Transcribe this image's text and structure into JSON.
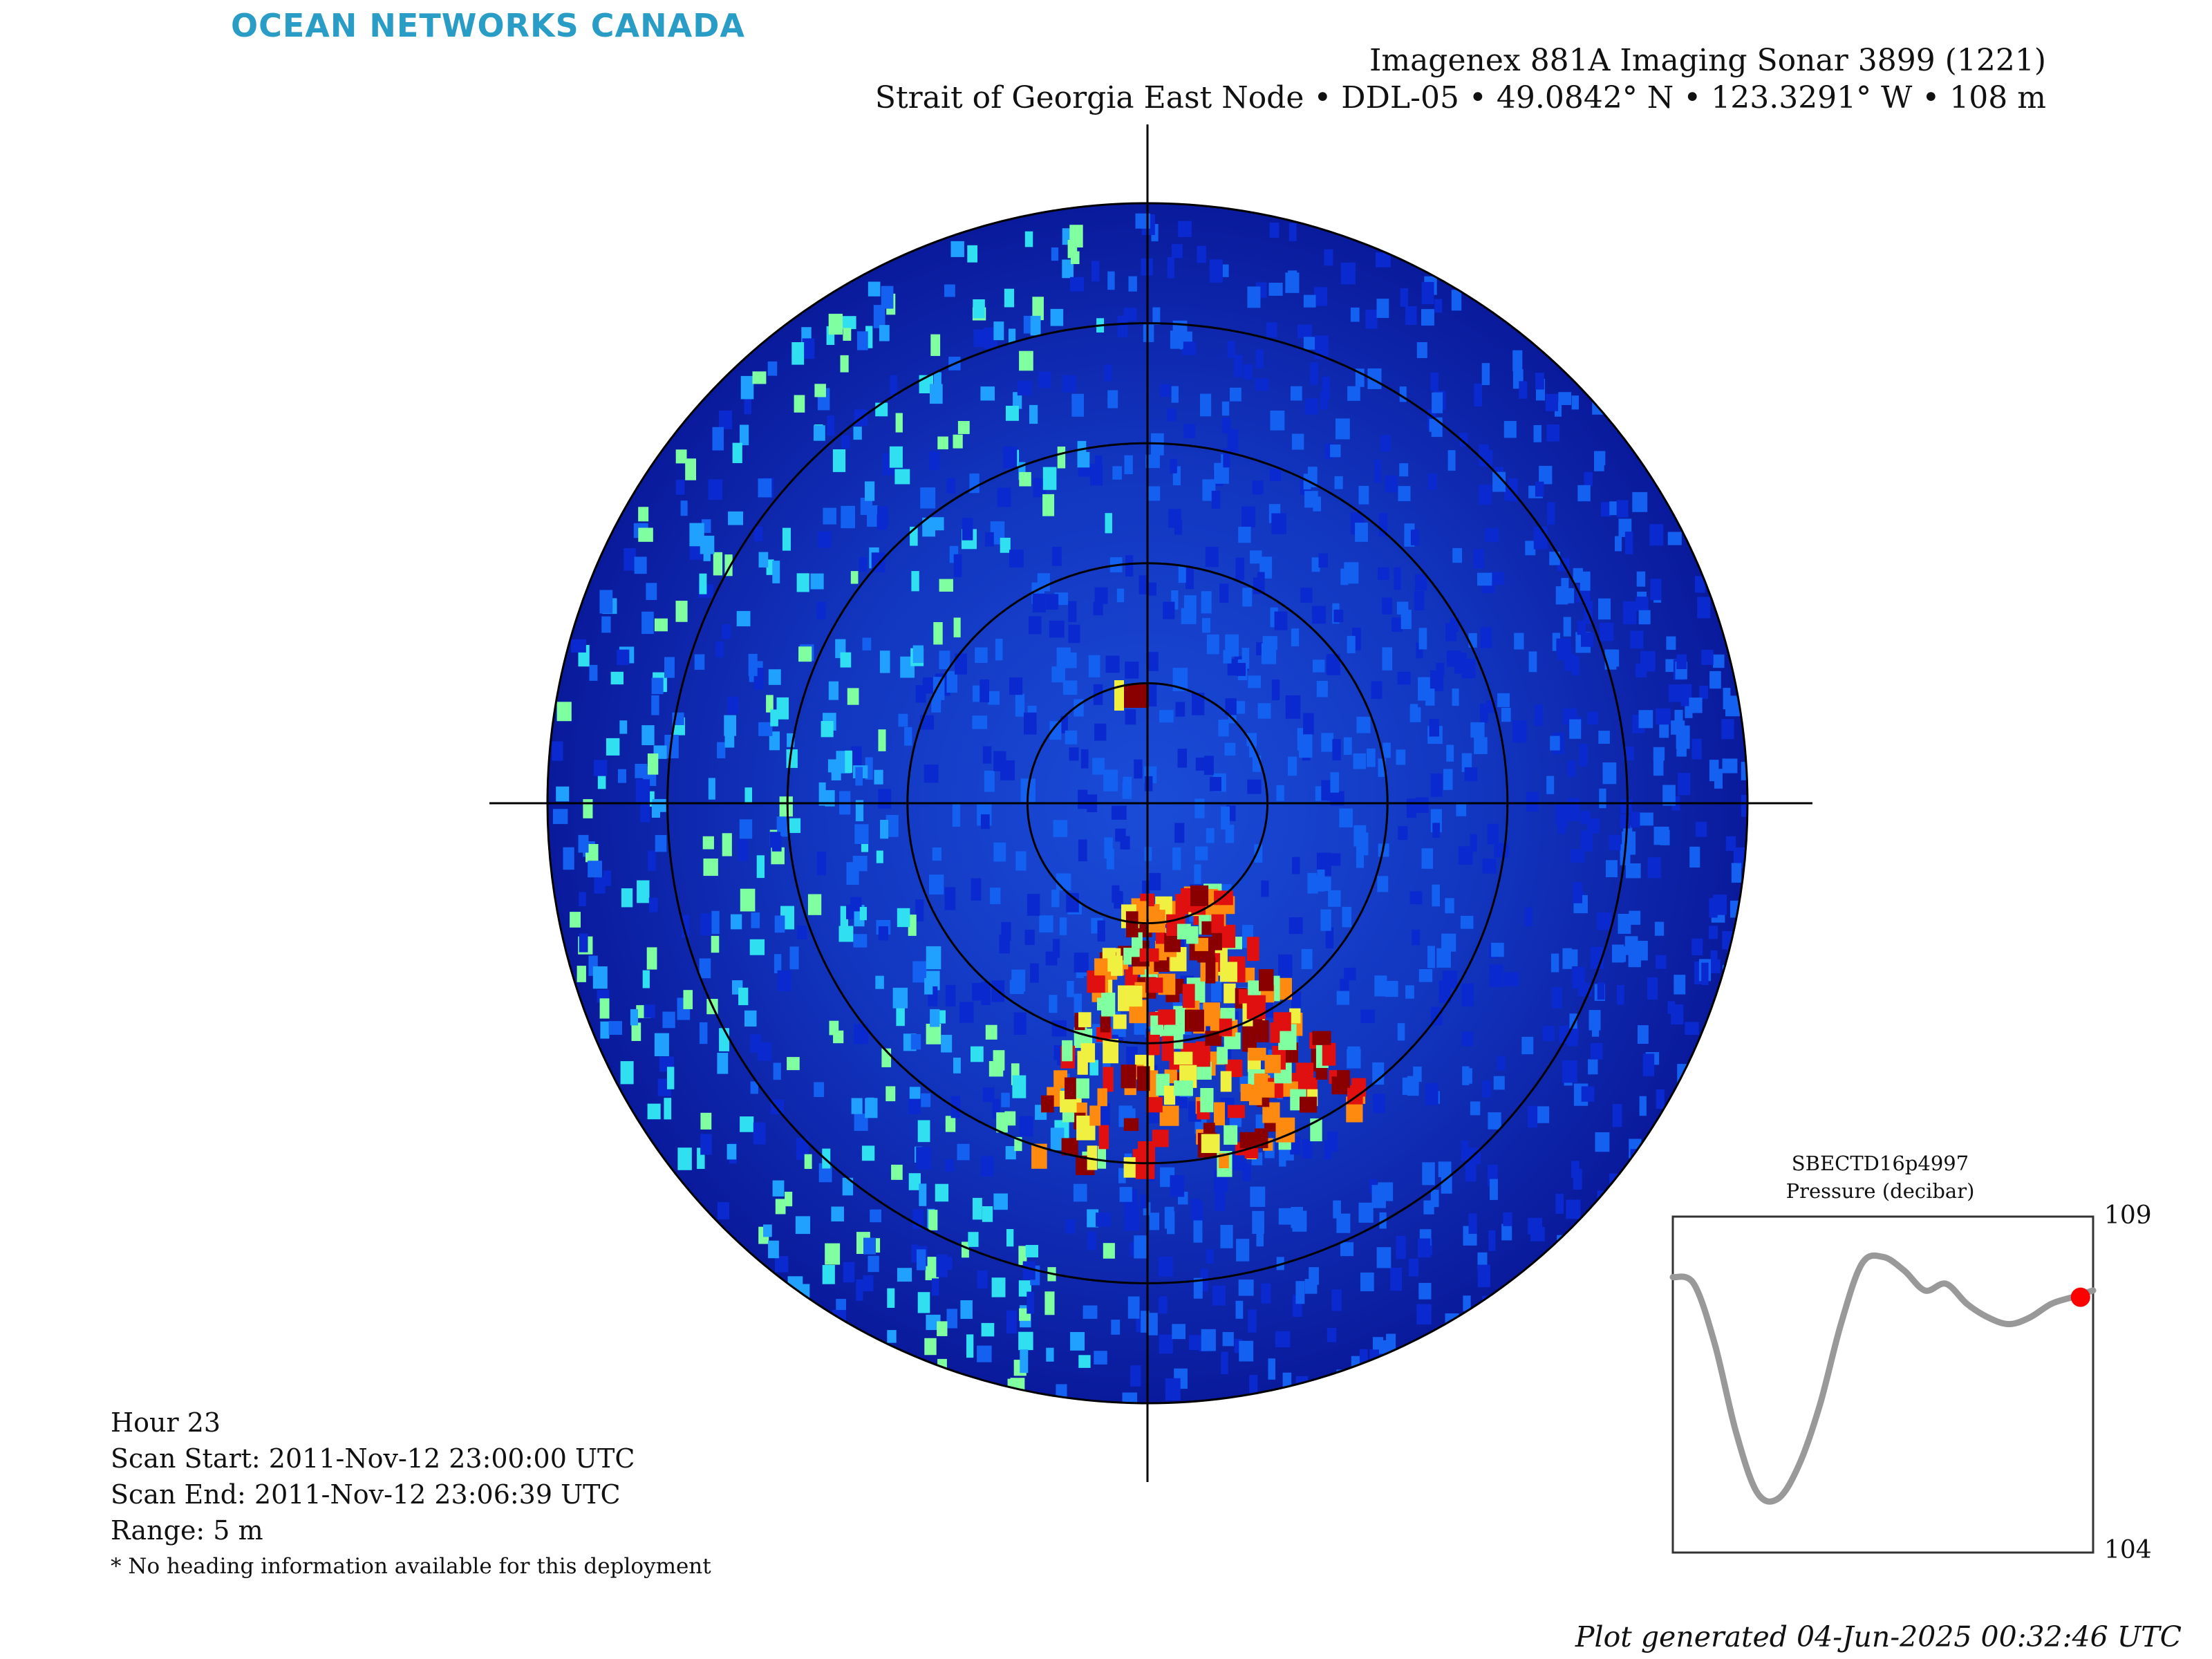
{
  "logo": {
    "text": "OCEAN NETWORKS CANADA"
  },
  "title": {
    "line1": "Imagenex 881A Imaging Sonar 3899 (1221)",
    "line2": "Strait of Georgia East Node • DDL-05 • 49.0842° N • 123.3291° W • 108 m"
  },
  "info": {
    "hour": "Hour 23",
    "scan_start": "Scan Start: 2011-Nov-12 23:00:00 UTC",
    "scan_end": "Scan End: 2011-Nov-12 23:06:39 UTC",
    "range": "Range: 5 m",
    "note": "* No heading information available for this deployment"
  },
  "footer": {
    "generated": "Plot generated 04-Jun-2025 00:32:46 UTC"
  },
  "colors": {
    "sonar_background": "#0a1a9c",
    "range_rings": "#000000",
    "pressure_line": "#999999",
    "current_marker": "#ff0000"
  },
  "chart_data": [
    {
      "type": "heatmap",
      "kind": "polar sonar scan",
      "range_m": 5,
      "range_rings_m": [
        1,
        2,
        3,
        4,
        5
      ],
      "colormap": "jet",
      "strong_returns": [
        {
          "sector": "south / south-east, 1-3 m",
          "intensity": "high"
        },
        {
          "sector": "west, 3-5 m",
          "intensity": "medium"
        },
        {
          "sector": "north, 1 m",
          "intensity": "high"
        }
      ]
    },
    {
      "type": "line",
      "title": "SBECTD16p4997",
      "ylabel": "Pressure (decibar)",
      "ylim": [
        104,
        109
      ],
      "y_tick_labels": [
        "109",
        "104"
      ],
      "x": [
        0,
        0.05,
        0.1,
        0.15,
        0.2,
        0.25,
        0.3,
        0.35,
        0.4,
        0.45,
        0.5,
        0.55,
        0.6,
        0.65,
        0.7,
        0.75,
        0.8,
        0.85,
        0.9,
        0.95,
        1.0
      ],
      "values": [
        108.1,
        108.0,
        107.1,
        105.8,
        104.9,
        104.8,
        105.3,
        106.2,
        107.4,
        108.3,
        108.4,
        108.2,
        107.9,
        108.0,
        107.7,
        107.5,
        107.4,
        107.5,
        107.7,
        107.8,
        107.9
      ],
      "current_point": {
        "x": 0.97,
        "value": 107.8
      }
    }
  ]
}
